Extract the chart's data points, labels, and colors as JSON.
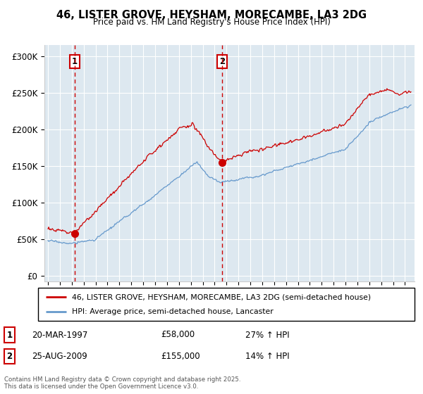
{
  "title": "46, LISTER GROVE, HEYSHAM, MORECAMBE, LA3 2DG",
  "subtitle": "Price paid vs. HM Land Registry's House Price Index (HPI)",
  "ylabel_ticks": [
    "£0",
    "£50K",
    "£100K",
    "£150K",
    "£200K",
    "£250K",
    "£300K"
  ],
  "ytick_values": [
    0,
    50000,
    100000,
    150000,
    200000,
    250000,
    300000
  ],
  "ylim": [
    -8000,
    315000
  ],
  "xlim_start": 1994.7,
  "xlim_end": 2025.8,
  "purchase1_date": 1997.22,
  "purchase1_price": 58000,
  "purchase2_date": 2009.65,
  "purchase2_price": 155000,
  "legend_line1": "46, LISTER GROVE, HEYSHAM, MORECAMBE, LA3 2DG (semi-detached house)",
  "legend_line2": "HPI: Average price, semi-detached house, Lancaster",
  "footer": "Contains HM Land Registry data © Crown copyright and database right 2025.\nThis data is licensed under the Open Government Licence v3.0.",
  "red_color": "#cc0000",
  "blue_color": "#6699cc",
  "bg_color": "#dde8f0",
  "plot_bg": "#ffffff",
  "grid_color": "#ffffff"
}
